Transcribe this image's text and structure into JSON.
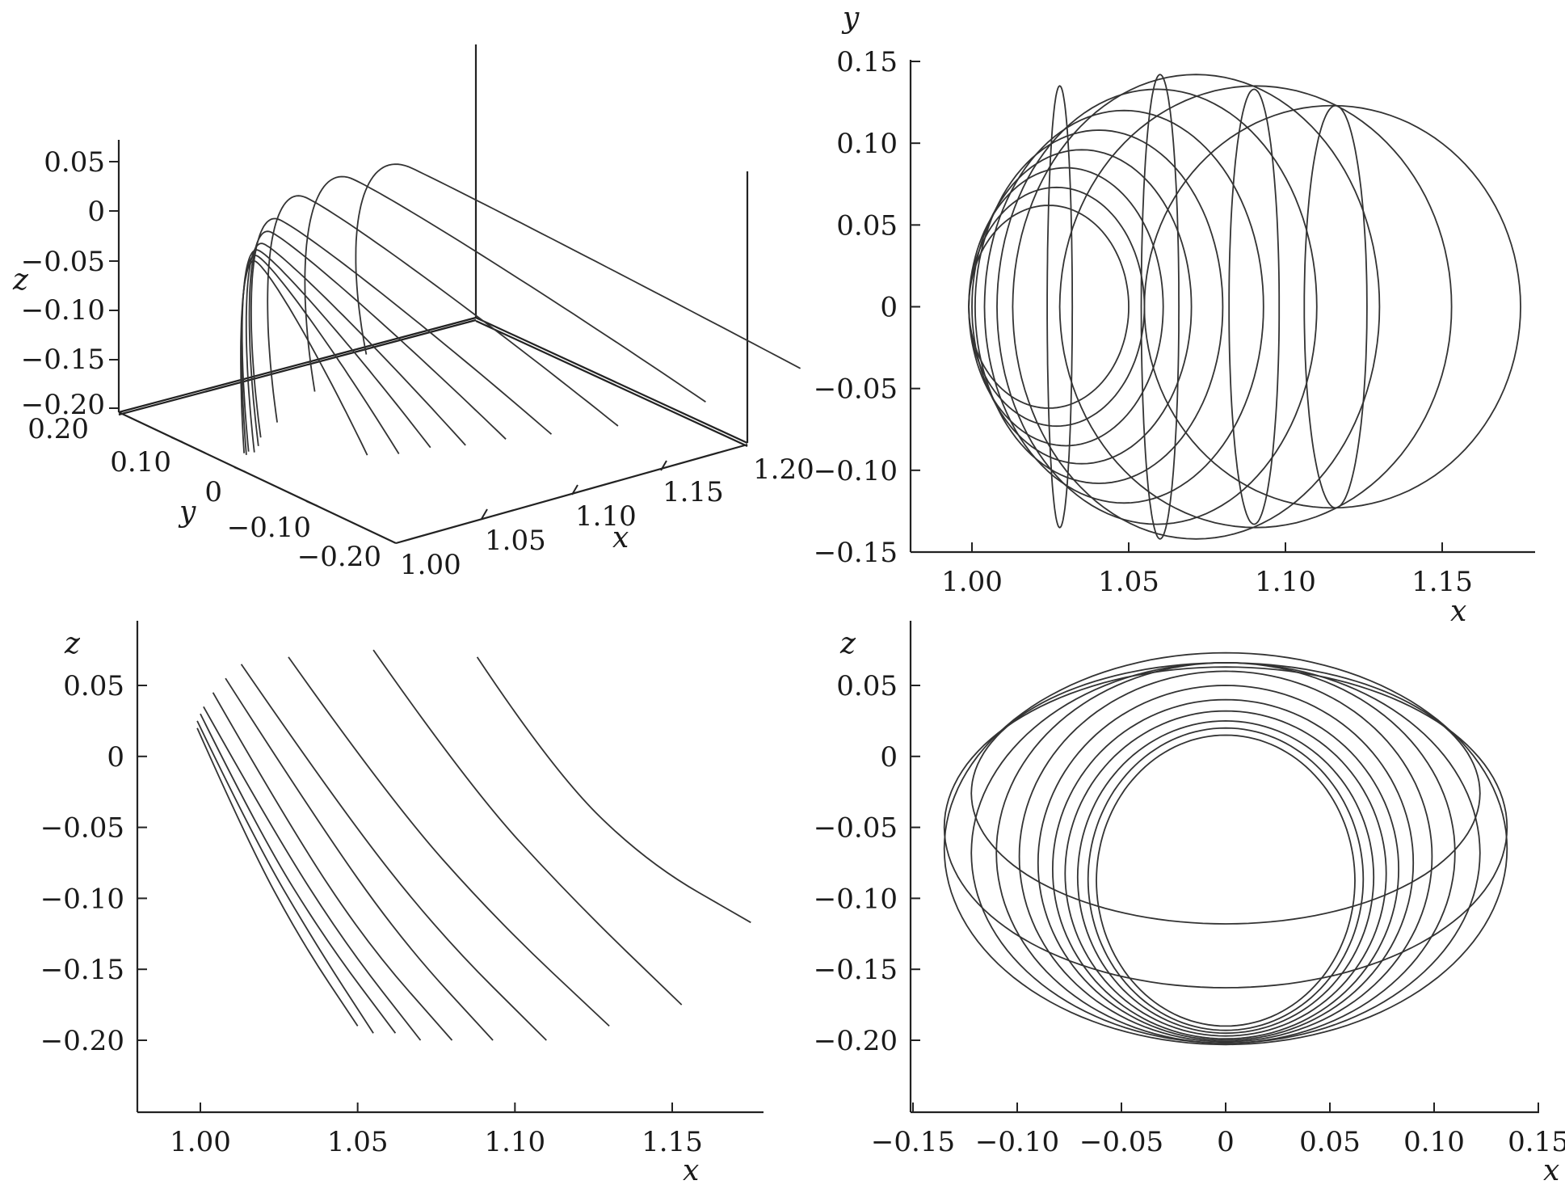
{
  "chart_data": [
    {
      "panel": "top-left",
      "type": "line3d",
      "title": "",
      "xlabel": "x",
      "ylabel": "y",
      "zlabel": "z",
      "xlim": [
        1.0,
        1.2
      ],
      "ylim": [
        -0.2,
        0.2
      ],
      "zlim": [
        -0.2,
        0.07
      ],
      "x_ticks": [
        "1.00",
        "1.05",
        "1.10",
        "1.15",
        "1.20"
      ],
      "y_ticks": [
        "0.20",
        "0.10",
        "0",
        "−0.10",
        "−0.20"
      ],
      "z_ticks": [
        "0.05",
        "0",
        "−0.05",
        "−0.10",
        "−0.15",
        "−0.20"
      ],
      "z_tick_values": [
        0.05,
        0,
        -0.05,
        -0.1,
        -0.15,
        -0.2
      ],
      "arcs": [
        {
          "x_base": 1.0,
          "x_top": 0.999,
          "z_top": 0.02,
          "z_bottom": -0.19,
          "y_amp": 0.035
        },
        {
          "x_base": 1.0,
          "x_top": 1.0,
          "z_top": 0.025,
          "z_bottom": -0.195,
          "y_amp": 0.04
        },
        {
          "x_base": 1.0,
          "x_top": 1.001,
          "z_top": 0.03,
          "z_bottom": -0.195,
          "y_amp": 0.045
        },
        {
          "x_base": 1.0,
          "x_top": 1.004,
          "z_top": 0.035,
          "z_bottom": -0.2,
          "y_amp": 0.05
        },
        {
          "x_base": 1.0,
          "x_top": 1.008,
          "z_top": 0.045,
          "z_bottom": -0.2,
          "y_amp": 0.06
        },
        {
          "x_base": 1.0,
          "x_top": 1.013,
          "z_top": 0.055,
          "z_bottom": -0.2,
          "y_amp": 0.075
        },
        {
          "x_base": 1.0,
          "x_top": 1.028,
          "z_top": 0.07,
          "z_bottom": -0.2,
          "y_amp": 0.095
        },
        {
          "x_base": 1.0,
          "x_top": 1.055,
          "z_top": 0.075,
          "z_bottom": -0.19,
          "y_amp": 0.115
        },
        {
          "x_base": 1.0,
          "x_top": 1.088,
          "z_top": 0.07,
          "z_bottom": -0.175,
          "y_amp": 0.13
        }
      ]
    },
    {
      "panel": "top-right",
      "type": "line",
      "title": "",
      "xlabel": "x",
      "ylabel": "y",
      "xlim": [
        0.98,
        1.18
      ],
      "ylim": [
        -0.15,
        0.15
      ],
      "x_ticks": [
        "1.00",
        "1.05",
        "1.10",
        "1.15"
      ],
      "x_tick_values": [
        1.0,
        1.05,
        1.1,
        1.15
      ],
      "y_ticks": [
        "0.15",
        "0.10",
        "0.05",
        "0",
        "−0.05",
        "−0.10",
        "−0.15"
      ],
      "y_tick_values": [
        0.15,
        0.1,
        0.05,
        0,
        -0.05,
        -0.1,
        -0.15
      ],
      "loops": [
        {
          "x_left": 0.999,
          "x_right": 1.05,
          "y_amp": 0.062
        },
        {
          "x_left": 0.999,
          "x_right": 1.055,
          "y_amp": 0.073
        },
        {
          "x_left": 0.999,
          "x_right": 1.061,
          "y_amp": 0.085
        },
        {
          "x_left": 1.0,
          "x_right": 1.07,
          "y_amp": 0.096
        },
        {
          "x_left": 1.001,
          "x_right": 1.08,
          "y_amp": 0.108
        },
        {
          "x_left": 1.004,
          "x_right": 1.093,
          "y_amp": 0.12
        },
        {
          "x_left": 1.008,
          "x_right": 1.11,
          "y_amp": 0.133
        },
        {
          "x_left": 1.013,
          "x_right": 1.13,
          "y_amp": 0.142
        },
        {
          "x_left": 1.028,
          "x_right": 1.153,
          "y_amp": 0.135
        },
        {
          "x_left": 1.055,
          "x_right": 1.175,
          "y_amp": 0.123
        }
      ],
      "vertical_loops": [
        {
          "x_center": 1.028,
          "x_amp": 0.004,
          "y_amp": 0.135
        },
        {
          "x_center": 1.06,
          "x_amp": 0.006,
          "y_amp": 0.142
        },
        {
          "x_center": 1.09,
          "x_amp": 0.008,
          "y_amp": 0.133
        },
        {
          "x_center": 1.116,
          "x_amp": 0.01,
          "y_amp": 0.123
        }
      ]
    },
    {
      "panel": "bottom-left",
      "type": "line",
      "title": "",
      "xlabel": "x",
      "ylabel": "z",
      "xlim": [
        0.98,
        1.18
      ],
      "ylim": [
        -0.25,
        0.095
      ],
      "x_ticks": [
        "1.00",
        "1.05",
        "1.10",
        "1.15"
      ],
      "x_tick_values": [
        1.0,
        1.05,
        1.1,
        1.15
      ],
      "y_ticks": [
        "0.05",
        "0",
        "−0.05",
        "−0.10",
        "−0.15",
        "−0.20"
      ],
      "y_tick_values": [
        0.05,
        0,
        -0.05,
        -0.1,
        -0.15,
        -0.2
      ],
      "series": [
        {
          "x": [
            0.999,
            1.015,
            1.032,
            1.05
          ],
          "z": [
            0.02,
            -0.06,
            -0.13,
            -0.19
          ]
        },
        {
          "x": [
            0.999,
            1.017,
            1.036,
            1.055
          ],
          "z": [
            0.025,
            -0.058,
            -0.13,
            -0.195
          ]
        },
        {
          "x": [
            1.0,
            1.019,
            1.04,
            1.062
          ],
          "z": [
            0.03,
            -0.055,
            -0.13,
            -0.195
          ]
        },
        {
          "x": [
            1.001,
            1.023,
            1.046,
            1.07
          ],
          "z": [
            0.035,
            -0.052,
            -0.132,
            -0.2
          ]
        },
        {
          "x": [
            1.004,
            1.028,
            1.053,
            1.08
          ],
          "z": [
            0.045,
            -0.048,
            -0.132,
            -0.2
          ]
        },
        {
          "x": [
            1.008,
            1.036,
            1.064,
            1.093
          ],
          "z": [
            0.055,
            -0.042,
            -0.13,
            -0.2
          ]
        },
        {
          "x": [
            1.013,
            1.044,
            1.076,
            1.11
          ],
          "z": [
            0.065,
            -0.035,
            -0.125,
            -0.2
          ]
        },
        {
          "x": [
            1.028,
            1.06,
            1.094,
            1.13
          ],
          "z": [
            0.07,
            -0.03,
            -0.115,
            -0.19
          ]
        },
        {
          "x": [
            1.055,
            1.085,
            1.118,
            1.153
          ],
          "z": [
            0.075,
            -0.02,
            -0.1,
            -0.175
          ]
        },
        {
          "x": [
            1.088,
            1.112,
            1.142,
            1.175
          ],
          "z": [
            0.07,
            -0.01,
            -0.075,
            -0.117
          ]
        }
      ]
    },
    {
      "panel": "bottom-right",
      "type": "line",
      "title": "",
      "xlabel": "x",
      "ylabel": "z",
      "xlim": [
        -0.15,
        0.15
      ],
      "ylim": [
        -0.25,
        0.095
      ],
      "x_ticks": [
        "−0.15",
        "−0.10",
        "−0.05",
        "0",
        "0.05",
        "0.10",
        "0.15"
      ],
      "x_tick_values": [
        -0.15,
        -0.1,
        -0.05,
        0,
        0.05,
        0.1,
        0.15
      ],
      "y_ticks": [
        "0.05",
        "0",
        "−0.05",
        "−0.10",
        "−0.15",
        "−0.20"
      ],
      "y_tick_values": [
        0.05,
        0,
        -0.05,
        -0.1,
        -0.15,
        -0.2
      ],
      "loops": [
        {
          "x_amp": 0.062,
          "z_top": 0.015,
          "z_bottom": -0.19
        },
        {
          "x_amp": 0.066,
          "z_top": 0.02,
          "z_bottom": -0.193
        },
        {
          "x_amp": 0.071,
          "z_top": 0.025,
          "z_bottom": -0.195
        },
        {
          "x_amp": 0.077,
          "z_top": 0.032,
          "z_bottom": -0.197
        },
        {
          "x_amp": 0.083,
          "z_top": 0.04,
          "z_bottom": -0.199
        },
        {
          "x_amp": 0.09,
          "z_top": 0.05,
          "z_bottom": -0.2
        },
        {
          "x_amp": 0.099,
          "z_top": 0.06,
          "z_bottom": -0.201
        },
        {
          "x_amp": 0.11,
          "z_top": 0.066,
          "z_bottom": -0.202
        },
        {
          "x_amp": 0.122,
          "z_top": 0.066,
          "z_bottom": -0.202
        },
        {
          "x_amp": 0.135,
          "z_top": 0.073,
          "z_bottom": -0.203
        }
      ],
      "horizontal_loops": [
        {
          "x_amp": 0.122,
          "z_center": -0.026,
          "z_amp": 0.092
        },
        {
          "x_amp": 0.135,
          "z_center": -0.05,
          "z_amp": 0.113
        }
      ]
    }
  ]
}
